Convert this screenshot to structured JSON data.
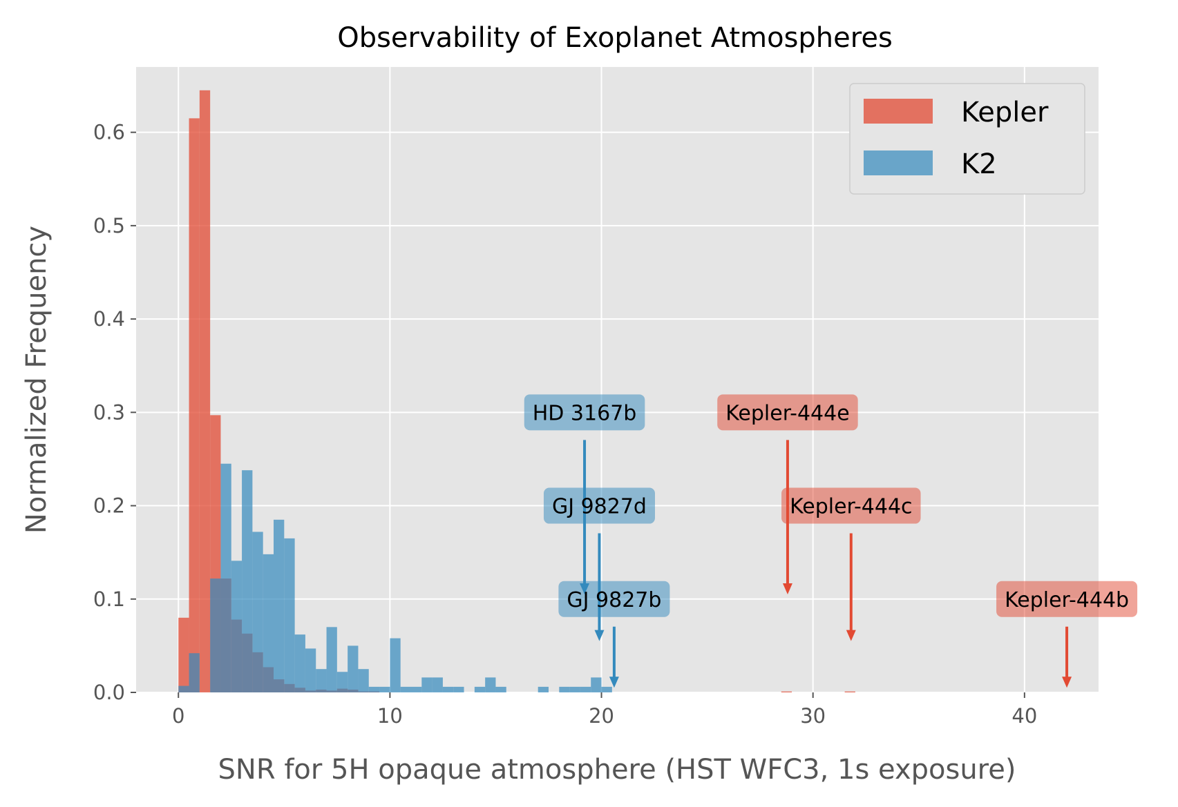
{
  "chart_data": {
    "type": "bar",
    "title": "Observability of Exoplanet Atmospheres",
    "xlabel": "SNR for 5H opaque atmosphere (HST WFC3, 1s exposure)",
    "ylabel": "Normalized Frequency",
    "xlim": [
      -2,
      43.5
    ],
    "ylim": [
      0,
      0.67
    ],
    "xticks": [
      0,
      10,
      20,
      30,
      40
    ],
    "yticks": [
      0.0,
      0.1,
      0.2,
      0.3,
      0.4,
      0.5,
      0.6
    ],
    "xtick_labels": [
      "0",
      "10",
      "20",
      "30",
      "40"
    ],
    "ytick_labels": [
      "0.0",
      "0.1",
      "0.2",
      "0.3",
      "0.4",
      "0.5",
      "0.6"
    ],
    "grid": true,
    "legend_position": "top-right",
    "series": [
      {
        "name": "Kepler",
        "color": "#E24A33",
        "opacity": 0.75,
        "bins": [
          {
            "x0": 0.0,
            "x1": 0.5,
            "y": 0.08
          },
          {
            "x0": 0.5,
            "x1": 1.0,
            "y": 0.615
          },
          {
            "x0": 1.0,
            "x1": 1.5,
            "y": 0.645
          },
          {
            "x0": 1.5,
            "x1": 2.0,
            "y": 0.297
          },
          {
            "x0": 2.0,
            "x1": 2.5,
            "y": 0.122
          },
          {
            "x0": 2.5,
            "x1": 3.0,
            "y": 0.078
          },
          {
            "x0": 3.0,
            "x1": 3.5,
            "y": 0.063
          },
          {
            "x0": 3.5,
            "x1": 4.0,
            "y": 0.043
          },
          {
            "x0": 4.0,
            "x1": 4.5,
            "y": 0.027
          },
          {
            "x0": 4.5,
            "x1": 5.0,
            "y": 0.014
          },
          {
            "x0": 5.0,
            "x1": 5.5,
            "y": 0.009
          },
          {
            "x0": 5.5,
            "x1": 6.0,
            "y": 0.005
          },
          {
            "x0": 6.0,
            "x1": 6.5,
            "y": 0.002
          },
          {
            "x0": 6.5,
            "x1": 7.0,
            "y": 0.003
          },
          {
            "x0": 7.0,
            "x1": 7.5,
            "y": 0.002
          },
          {
            "x0": 7.5,
            "x1": 8.0,
            "y": 0.004
          },
          {
            "x0": 8.0,
            "x1": 8.5,
            "y": 0.003
          },
          {
            "x0": 8.5,
            "x1": 9.0,
            "y": 0.001
          },
          {
            "x0": 9.0,
            "x1": 9.5,
            "y": 0.001
          },
          {
            "x0": 28.5,
            "x1": 29.0,
            "y": 0.001
          },
          {
            "x0": 31.5,
            "x1": 32.0,
            "y": 0.001
          }
        ]
      },
      {
        "name": "K2",
        "color": "#348ABD",
        "opacity": 0.7,
        "bins": [
          {
            "x0": 0.0,
            "x1": 0.5,
            "y": 0.007
          },
          {
            "x0": 0.5,
            "x1": 1.0,
            "y": 0.042
          },
          {
            "x0": 1.0,
            "x1": 1.5,
            "y": 0.0
          },
          {
            "x0": 1.5,
            "x1": 2.0,
            "y": 0.122
          },
          {
            "x0": 2.0,
            "x1": 2.5,
            "y": 0.245
          },
          {
            "x0": 2.5,
            "x1": 3.0,
            "y": 0.141
          },
          {
            "x0": 3.0,
            "x1": 3.5,
            "y": 0.238
          },
          {
            "x0": 3.5,
            "x1": 4.0,
            "y": 0.172
          },
          {
            "x0": 4.0,
            "x1": 4.5,
            "y": 0.148
          },
          {
            "x0": 4.5,
            "x1": 5.0,
            "y": 0.185
          },
          {
            "x0": 5.0,
            "x1": 5.5,
            "y": 0.165
          },
          {
            "x0": 5.5,
            "x1": 6.0,
            "y": 0.062
          },
          {
            "x0": 6.0,
            "x1": 6.5,
            "y": 0.047
          },
          {
            "x0": 6.5,
            "x1": 7.0,
            "y": 0.025
          },
          {
            "x0": 7.0,
            "x1": 7.5,
            "y": 0.07
          },
          {
            "x0": 7.5,
            "x1": 8.0,
            "y": 0.022
          },
          {
            "x0": 8.0,
            "x1": 8.5,
            "y": 0.05
          },
          {
            "x0": 8.5,
            "x1": 9.0,
            "y": 0.025
          },
          {
            "x0": 9.0,
            "x1": 9.5,
            "y": 0.006
          },
          {
            "x0": 9.5,
            "x1": 10.0,
            "y": 0.006
          },
          {
            "x0": 10.0,
            "x1": 10.5,
            "y": 0.058
          },
          {
            "x0": 10.5,
            "x1": 11.0,
            "y": 0.006
          },
          {
            "x0": 11.0,
            "x1": 11.5,
            "y": 0.006
          },
          {
            "x0": 11.5,
            "x1": 12.0,
            "y": 0.016
          },
          {
            "x0": 12.0,
            "x1": 12.5,
            "y": 0.016
          },
          {
            "x0": 12.5,
            "x1": 13.0,
            "y": 0.006
          },
          {
            "x0": 13.0,
            "x1": 13.5,
            "y": 0.006
          },
          {
            "x0": 13.5,
            "x1": 14.0,
            "y": 0.0
          },
          {
            "x0": 14.0,
            "x1": 14.5,
            "y": 0.006
          },
          {
            "x0": 14.5,
            "x1": 15.0,
            "y": 0.016
          },
          {
            "x0": 15.0,
            "x1": 15.5,
            "y": 0.006
          },
          {
            "x0": 17.0,
            "x1": 17.5,
            "y": 0.006
          },
          {
            "x0": 18.0,
            "x1": 18.5,
            "y": 0.006
          },
          {
            "x0": 18.5,
            "x1": 19.0,
            "y": 0.006
          },
          {
            "x0": 19.0,
            "x1": 19.5,
            "y": 0.006
          },
          {
            "x0": 19.5,
            "x1": 20.0,
            "y": 0.016
          },
          {
            "x0": 20.0,
            "x1": 20.5,
            "y": 0.006
          }
        ]
      }
    ],
    "annotations": [
      {
        "label": "HD 3167b",
        "x": 19.2,
        "y": 0.105,
        "text_x": 19.2,
        "text_y": 0.3,
        "color": "#348ABD"
      },
      {
        "label": "GJ 9827d",
        "x": 19.9,
        "y": 0.055,
        "text_x": 19.9,
        "text_y": 0.2,
        "color": "#348ABD"
      },
      {
        "label": "GJ 9827b",
        "x": 20.6,
        "y": 0.005,
        "text_x": 20.6,
        "text_y": 0.1,
        "color": "#348ABD"
      },
      {
        "label": "Kepler-444e",
        "x": 28.8,
        "y": 0.105,
        "text_x": 28.8,
        "text_y": 0.3,
        "color": "#E24A33"
      },
      {
        "label": "Kepler-444c",
        "x": 31.8,
        "y": 0.055,
        "text_x": 31.8,
        "text_y": 0.2,
        "color": "#E24A33"
      },
      {
        "label": "Kepler-444b",
        "x": 42.0,
        "y": 0.005,
        "text_x": 42.0,
        "text_y": 0.1,
        "color": "#E24A33"
      }
    ]
  }
}
